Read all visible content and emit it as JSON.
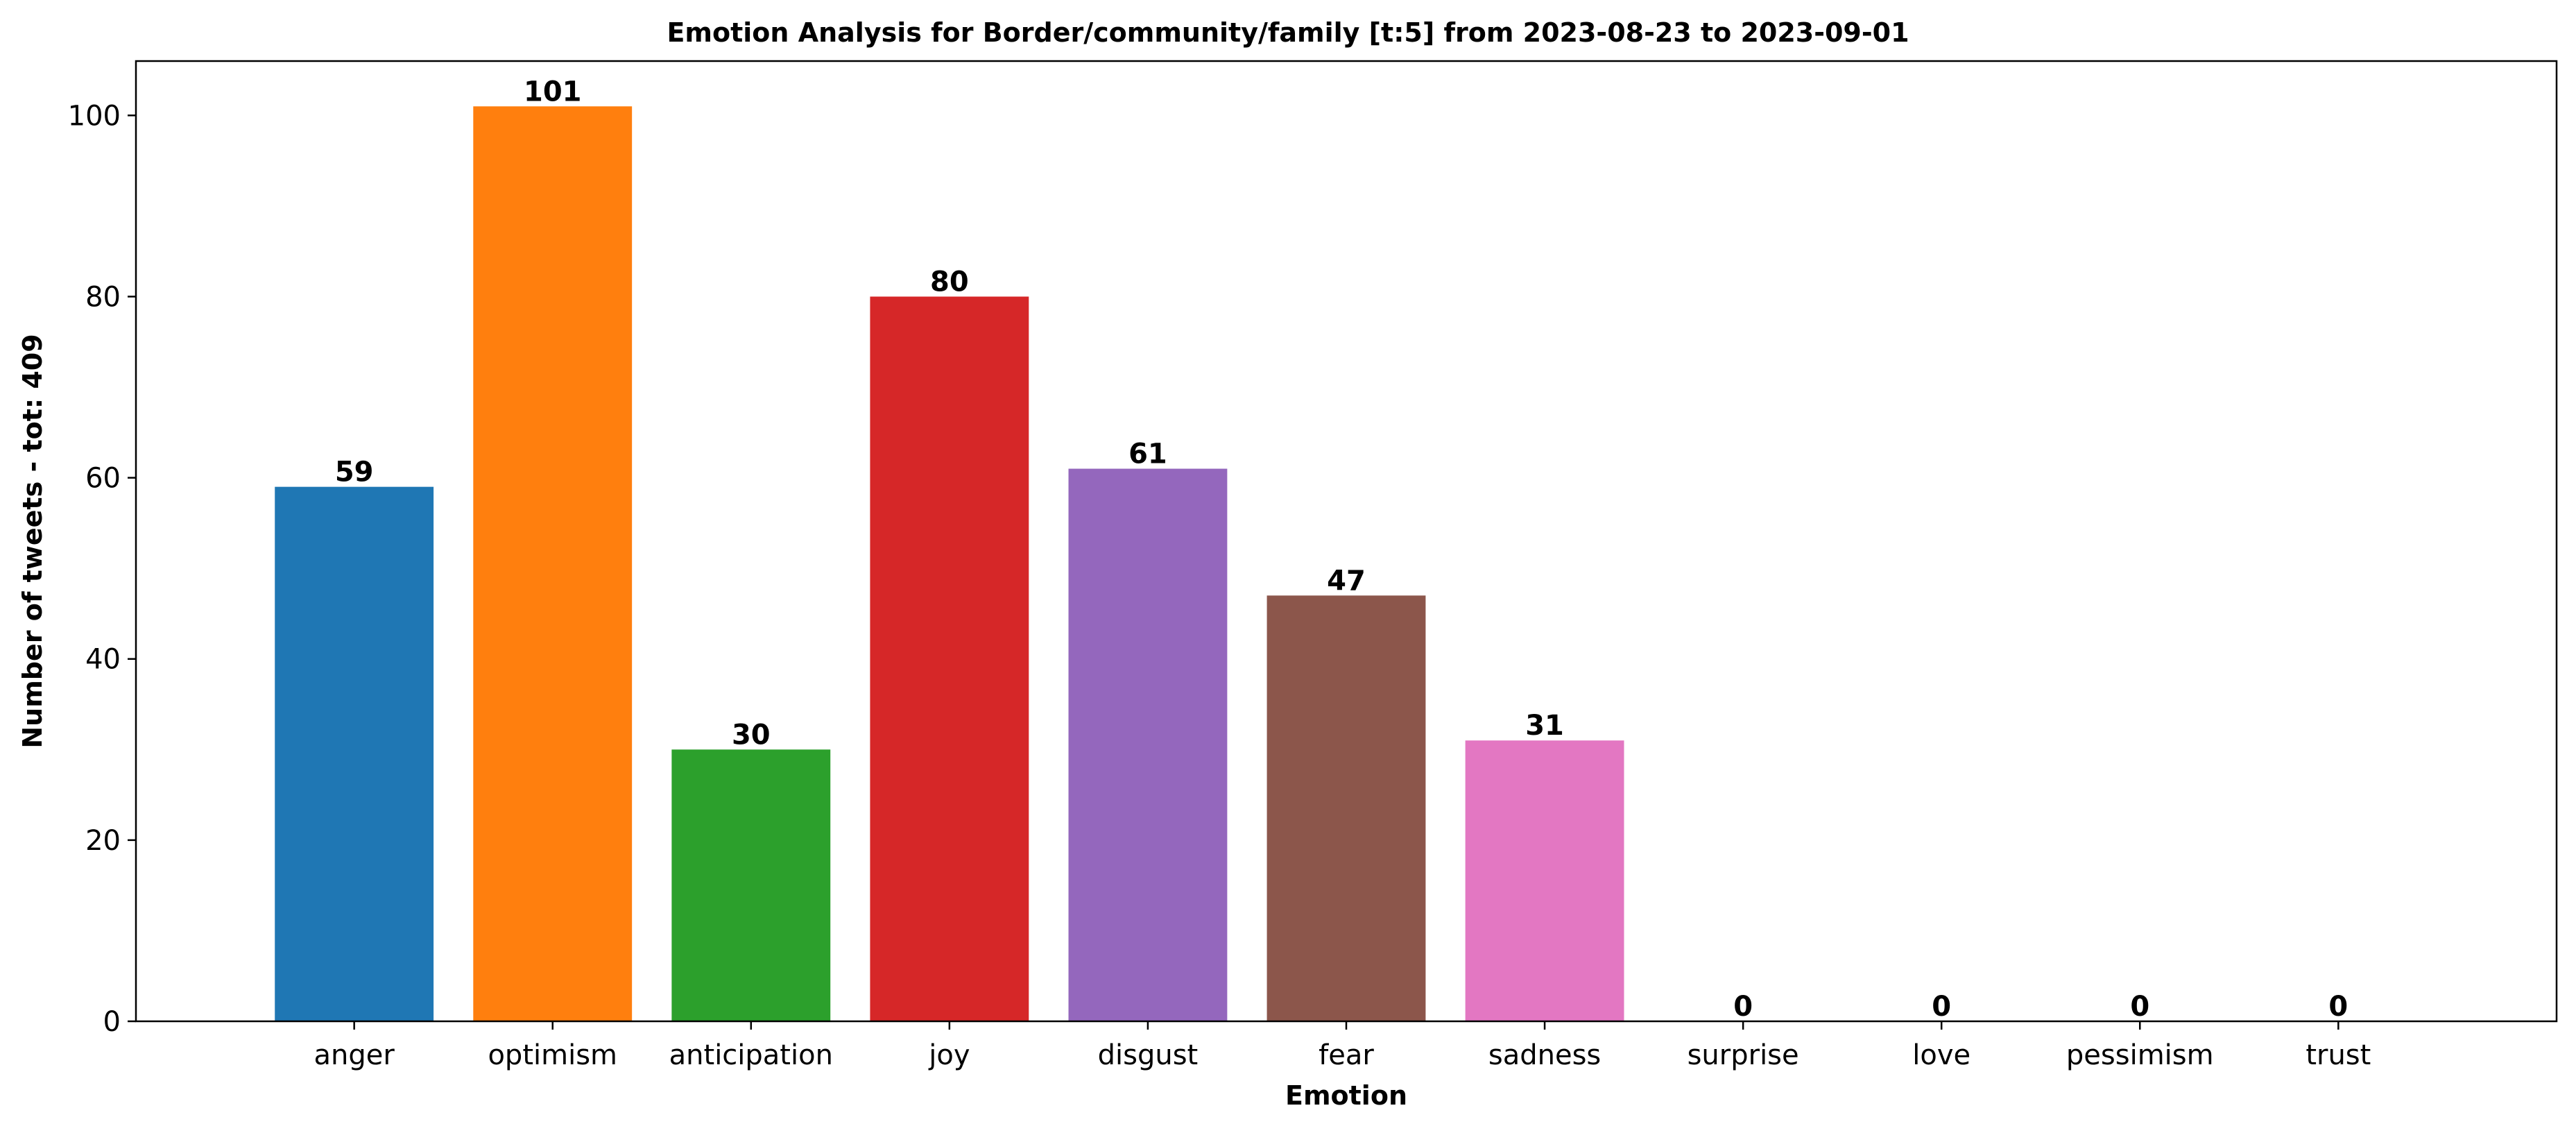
{
  "chart_data": {
    "type": "bar",
    "title": "Emotion Analysis for Border/community/family [t:5] from 2023-08-23 to 2023-09-01",
    "xlabel": "Emotion",
    "ylabel": "Number of tweets - tot: 409",
    "categories": [
      "anger",
      "optimism",
      "anticipation",
      "joy",
      "disgust",
      "fear",
      "sadness",
      "surprise",
      "love",
      "pessimism",
      "trust"
    ],
    "values": [
      59,
      101,
      30,
      80,
      61,
      47,
      31,
      0,
      0,
      0,
      0
    ],
    "colors": [
      "#1f77b4",
      "#ff7f0e",
      "#2ca02c",
      "#d62728",
      "#9467bd",
      "#8c564b",
      "#e377c2",
      "#7f7f7f",
      "#bcbd22",
      "#17becf",
      "#1f77b4"
    ],
    "ylim": [
      0,
      106
    ],
    "yticks": [
      0,
      20,
      40,
      60,
      80,
      100
    ],
    "grid": false,
    "legend": "none"
  }
}
